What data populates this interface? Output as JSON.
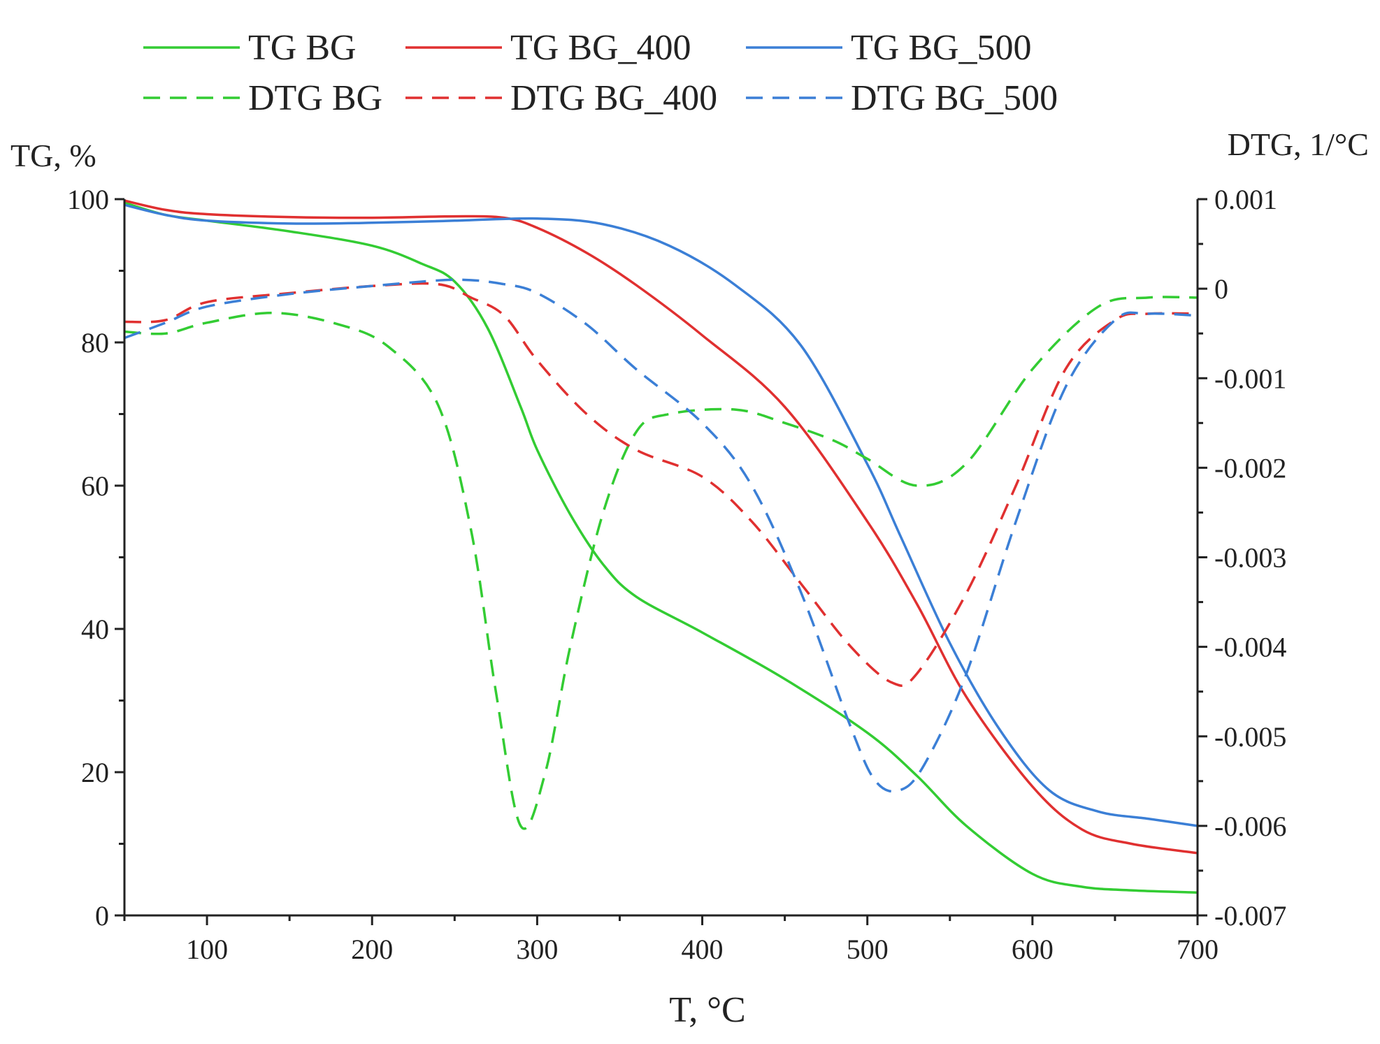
{
  "chart_data": {
    "type": "line",
    "title": "",
    "xlabel": "T, °C",
    "ylabel": "TG, %",
    "y2label": "DTG, 1/°C",
    "xlim": [
      50,
      700
    ],
    "ylim": [
      0,
      100
    ],
    "y2lim": [
      -0.007,
      0.001
    ],
    "x_ticks": [
      100,
      200,
      300,
      400,
      500,
      600,
      700
    ],
    "y_ticks": [
      0,
      20,
      40,
      60,
      80,
      100
    ],
    "y2_ticks": [
      0.001,
      0,
      -0.001,
      -0.002,
      -0.003,
      -0.004,
      -0.005,
      -0.006,
      -0.007
    ],
    "y2_tick_labels": [
      "0.001",
      "0",
      "-0.001",
      "-0.002",
      "-0.003",
      "-0.004",
      "-0.005",
      "-0.006",
      "-0.007"
    ],
    "grid": false,
    "legend_position": "top",
    "series": [
      {
        "name": "TG BG",
        "axis": "left",
        "style": "solid",
        "color": "#33cc33",
        "x": [
          50,
          75,
          100,
          150,
          200,
          230,
          250,
          270,
          290,
          300,
          320,
          340,
          360,
          400,
          450,
          500,
          530,
          560,
          600,
          630,
          660,
          700
        ],
        "y": [
          99.5,
          97.8,
          97.0,
          95.5,
          93.5,
          91.0,
          88.5,
          82.0,
          71.0,
          65.0,
          56.0,
          49.0,
          44.5,
          39.5,
          33.0,
          25.5,
          19.5,
          12.5,
          5.8,
          4.0,
          3.5,
          3.2
        ]
      },
      {
        "name": "TG BG_400",
        "axis": "left",
        "style": "solid",
        "color": "#e03030",
        "x": [
          50,
          75,
          100,
          150,
          200,
          250,
          280,
          300,
          330,
          360,
          400,
          450,
          500,
          530,
          560,
          600,
          630,
          660,
          700
        ],
        "y": [
          99.8,
          98.5,
          97.9,
          97.5,
          97.4,
          97.6,
          97.4,
          96.0,
          92.5,
          88.0,
          81.0,
          71.0,
          55.0,
          43.5,
          30.5,
          18.0,
          12.0,
          10.0,
          8.7
        ]
      },
      {
        "name": "TG BG_500",
        "axis": "left",
        "style": "solid",
        "color": "#3b7fd6",
        "x": [
          50,
          75,
          100,
          150,
          200,
          250,
          300,
          340,
          380,
          420,
          460,
          500,
          520,
          550,
          580,
          610,
          640,
          670,
          700
        ],
        "y": [
          99.2,
          97.8,
          97.0,
          96.6,
          96.7,
          97.0,
          97.3,
          96.5,
          93.5,
          88.0,
          79.5,
          63.0,
          53.0,
          38.0,
          26.0,
          17.5,
          14.5,
          13.5,
          12.5
        ]
      },
      {
        "name": "DTG BG",
        "axis": "right",
        "style": "dashed",
        "color": "#33cc33",
        "x": [
          50,
          75,
          100,
          140,
          180,
          210,
          240,
          260,
          275,
          290,
          305,
          320,
          340,
          360,
          380,
          420,
          450,
          480,
          500,
          530,
          560,
          600,
          640,
          670,
          700
        ],
        "y": [
          -0.00048,
          -0.0005,
          -0.00038,
          -0.00027,
          -0.0004,
          -0.00065,
          -0.0013,
          -0.0027,
          -0.0045,
          -0.006,
          -0.0054,
          -0.004,
          -0.0025,
          -0.0016,
          -0.0014,
          -0.00135,
          -0.0015,
          -0.0017,
          -0.0019,
          -0.0022,
          -0.00195,
          -0.0009,
          -0.0002,
          -0.0001,
          -0.0001
        ]
      },
      {
        "name": "DTG BG_400",
        "axis": "right",
        "style": "dashed",
        "color": "#e03030",
        "x": [
          50,
          75,
          100,
          150,
          200,
          240,
          260,
          280,
          300,
          330,
          360,
          400,
          430,
          460,
          490,
          515,
          530,
          560,
          590,
          620,
          650,
          670,
          700
        ],
        "y": [
          -0.00037,
          -0.00035,
          -0.00015,
          -5e-05,
          3e-05,
          5e-05,
          -0.0001,
          -0.0003,
          -0.0008,
          -0.0014,
          -0.0018,
          -0.0021,
          -0.0026,
          -0.0033,
          -0.004,
          -0.0044,
          -0.0043,
          -0.0034,
          -0.0022,
          -0.0009,
          -0.00035,
          -0.00028,
          -0.00028
        ]
      },
      {
        "name": "DTG BG_500",
        "axis": "right",
        "style": "dashed",
        "color": "#3b7fd6",
        "x": [
          50,
          75,
          100,
          150,
          200,
          250,
          280,
          300,
          330,
          360,
          400,
          430,
          460,
          490,
          505,
          520,
          535,
          560,
          590,
          620,
          650,
          670,
          700
        ],
        "y": [
          -0.00055,
          -0.00038,
          -0.0002,
          -6e-05,
          3e-05,
          0.0001,
          5e-05,
          -5e-05,
          -0.0004,
          -0.0009,
          -0.0015,
          -0.0022,
          -0.0034,
          -0.0049,
          -0.0055,
          -0.0056,
          -0.0053,
          -0.0043,
          -0.0026,
          -0.0011,
          -0.00035,
          -0.00028,
          -0.0003
        ]
      }
    ]
  }
}
